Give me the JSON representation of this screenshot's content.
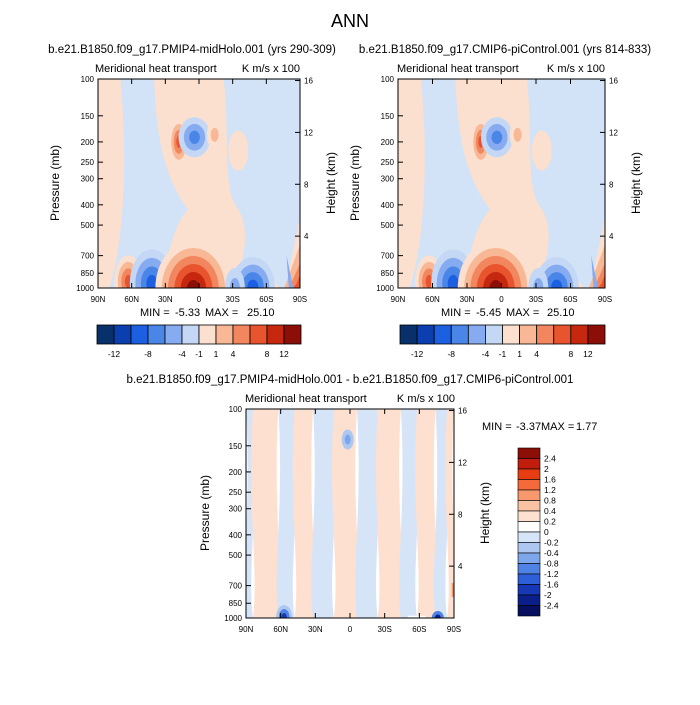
{
  "page": {
    "title": "ANN"
  },
  "chart_data": [
    {
      "type": "heatmap",
      "id": "midholo",
      "header": "b.e21.B1850.f09_g17.PMIP4-midHolo.001 (yrs 290-309)",
      "title": "Meridional heat transport",
      "units": "K m/s x 100",
      "xlabel": "",
      "ylabel": "Pressure (mb)",
      "ylabel_right": "Height (km)",
      "x_ticks": [
        "90N",
        "60N",
        "30N",
        "0",
        "30S",
        "60S",
        "90S"
      ],
      "x_tick_values": [
        90,
        60,
        30,
        0,
        -30,
        -60,
        -90
      ],
      "y_ticks": [
        "100",
        "150",
        "200",
        "250",
        "300",
        "400",
        "500",
        "700",
        "850",
        "1000"
      ],
      "y_tick_values": [
        100,
        150,
        200,
        250,
        300,
        400,
        500,
        700,
        850,
        1000
      ],
      "height_ticks": [
        "16",
        "12",
        "8",
        "4"
      ],
      "height_tick_values": [
        16,
        12,
        8,
        4
      ],
      "xlim": [
        90,
        -90
      ],
      "ylim": [
        1000,
        100
      ],
      "min_label": "MIN =",
      "min_value": "-5.33",
      "max_label": "MAX =",
      "max_value": "25.10",
      "colorbar_levels": [
        "-12",
        "-8",
        "-4",
        "-1",
        "1",
        "4",
        "8",
        "12"
      ],
      "features": [
        {
          "lat": 12,
          "p": 940,
          "value": 25.1
        },
        {
          "lat": -2,
          "p": 970,
          "value": 18
        },
        {
          "lat": 43,
          "p": 935,
          "value": -5.33
        },
        {
          "lat": 62,
          "p": 925,
          "value": 6
        },
        {
          "lat": -48,
          "p": 955,
          "value": -4
        },
        {
          "lat": 18,
          "p": 200,
          "value": 8
        },
        {
          "lat": 5,
          "p": 190,
          "value": -5
        },
        {
          "lat": -82,
          "p": 920,
          "value": 12
        }
      ]
    },
    {
      "type": "heatmap",
      "id": "picontrol",
      "header": "b.e21.B1850.f09_g17.CMIP6-piControl.001 (yrs 814-833)",
      "title": "Meridional heat transport",
      "units": "K m/s x 100",
      "xlabel": "",
      "ylabel": "Pressure (mb)",
      "ylabel_right": "Height (km)",
      "x_ticks": [
        "90N",
        "60N",
        "30N",
        "0",
        "30S",
        "60S",
        "90S"
      ],
      "x_tick_values": [
        90,
        60,
        30,
        0,
        -30,
        -60,
        -90
      ],
      "y_ticks": [
        "100",
        "150",
        "200",
        "250",
        "300",
        "400",
        "500",
        "700",
        "850",
        "1000"
      ],
      "y_tick_values": [
        100,
        150,
        200,
        250,
        300,
        400,
        500,
        700,
        850,
        1000
      ],
      "height_ticks": [
        "16",
        "12",
        "8",
        "4"
      ],
      "height_tick_values": [
        16,
        12,
        8,
        4
      ],
      "xlim": [
        90,
        -90
      ],
      "ylim": [
        1000,
        100
      ],
      "min_label": "MIN =",
      "min_value": "-5.45",
      "max_label": "MAX =",
      "max_value": "25.10",
      "colorbar_levels": [
        "-12",
        "-8",
        "-4",
        "-1",
        "1",
        "4",
        "8",
        "12"
      ],
      "features": [
        {
          "lat": 12,
          "p": 940,
          "value": 25.1
        },
        {
          "lat": -2,
          "p": 970,
          "value": 18
        },
        {
          "lat": 43,
          "p": 935,
          "value": -5.45
        },
        {
          "lat": 62,
          "p": 925,
          "value": 6
        },
        {
          "lat": -48,
          "p": 955,
          "value": -4
        },
        {
          "lat": 18,
          "p": 200,
          "value": 8
        },
        {
          "lat": 5,
          "p": 190,
          "value": -5
        },
        {
          "lat": -82,
          "p": 920,
          "value": 12
        }
      ]
    },
    {
      "type": "heatmap",
      "id": "difference",
      "header": "b.e21.B1850.f09_g17.PMIP4-midHolo.001 - b.e21.B1850.f09_g17.CMIP6-piControl.001",
      "title": "Meridional heat transport",
      "units": "K m/s x 100",
      "xlabel": "",
      "ylabel": "Pressure (mb)",
      "ylabel_right": "Height (km)",
      "x_ticks": [
        "90N",
        "60N",
        "30N",
        "0",
        "30S",
        "60S",
        "90S"
      ],
      "x_tick_values": [
        90,
        60,
        30,
        0,
        -30,
        -60,
        -90
      ],
      "y_ticks": [
        "100",
        "150",
        "200",
        "250",
        "300",
        "400",
        "500",
        "700",
        "850",
        "1000"
      ],
      "y_tick_values": [
        100,
        150,
        200,
        250,
        300,
        400,
        500,
        700,
        850,
        1000
      ],
      "height_ticks": [
        "16",
        "12",
        "8",
        "4"
      ],
      "height_tick_values": [
        16,
        12,
        8,
        4
      ],
      "xlim": [
        90,
        -90
      ],
      "ylim": [
        1000,
        100
      ],
      "min_label": "MIN =",
      "min_value": "-3.37",
      "max_label": "MAX =",
      "max_value": "1.77",
      "colorbar_levels": [
        "2.4",
        "2",
        "1.6",
        "1.2",
        "0.8",
        "0.4",
        "0.2",
        "0",
        "-0.2",
        "-0.4",
        "-0.8",
        "-1.2",
        "-1.6",
        "-2",
        "-2.4"
      ],
      "features": [
        {
          "lat": 57,
          "p": 985,
          "value": -3.37
        },
        {
          "lat": -76,
          "p": 985,
          "value": -2.5
        },
        {
          "lat": 2,
          "p": 140,
          "value": -0.5
        },
        {
          "lat": 30,
          "p": 600,
          "value": 0.2
        },
        {
          "lat": -88,
          "p": 700,
          "value": 1.77
        }
      ]
    }
  ],
  "colors": {
    "panel_colorbar": [
      "#08306b",
      "#0b3fb0",
      "#1c5fe0",
      "#4a86e8",
      "#86abf0",
      "#c4d8f6",
      "#fbe0cf",
      "#f8b895",
      "#f2865e",
      "#e7542d",
      "#c6270f",
      "#8b0f06"
    ],
    "diff_colorbar": [
      "#8b0f06",
      "#c01d0c",
      "#e63d12",
      "#f56a3a",
      "#f7996c",
      "#f9c2a2",
      "#fde0cf",
      "#ffffff",
      "#d6e4f8",
      "#adc7f0",
      "#7ea6ea",
      "#4f82e4",
      "#2d5fd8",
      "#1638b4",
      "#0b1f8a",
      "#06105e"
    ],
    "positive_light": "#fbe0cf",
    "negative_light": "#d2e2f7"
  }
}
